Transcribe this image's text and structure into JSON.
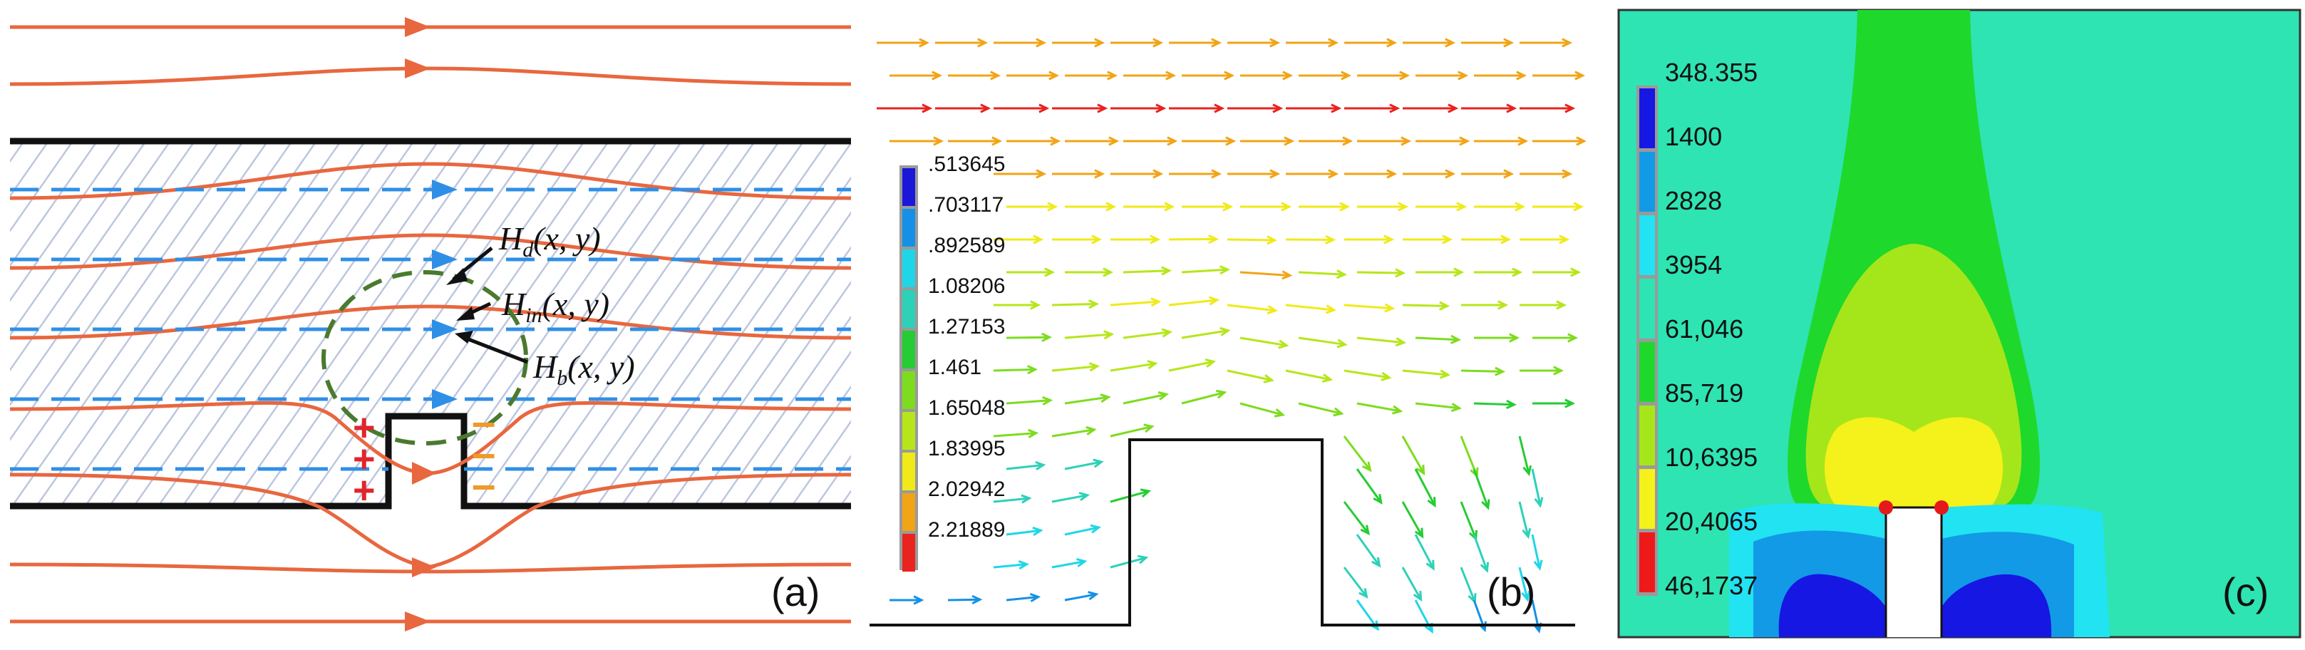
{
  "panel_a": {
    "tag": "(a)",
    "equations": [
      {
        "id": "hd",
        "main": "H",
        "sub": "d",
        "args": "(x, y)"
      },
      {
        "id": "hin",
        "main": "H",
        "sub": "in",
        "args": "(x, y)"
      },
      {
        "id": "hb",
        "main": "H",
        "sub": "b",
        "args": "(x, y)"
      }
    ],
    "plus_symbol": "+",
    "minus_symbol": "–",
    "colors": {
      "flux": "#e8673f",
      "field": "#2f8fe6",
      "plate": "#111111",
      "hatch": "#b9c4de",
      "circle": "#4a7a2e",
      "plus": "#e0252b",
      "minus": "#ef9a29"
    }
  },
  "panel_b": {
    "tag": "(b)",
    "colorbar_labels": [
      ".513645",
      ".703117",
      ".892589",
      "1.08206",
      "1.27153",
      "1.461",
      "1.65048",
      "1.83995",
      "2.02942",
      "2.21889"
    ],
    "colorbar_colors": [
      "#1a17d8",
      "#1690e6",
      "#1fd6e8",
      "#2dd1b8",
      "#25cc33",
      "#7ddc1e",
      "#b6e61a",
      "#f0ea19",
      "#f1a416",
      "#e9231e"
    ]
  },
  "panel_c": {
    "tag": "(c)",
    "colorbar_labels": [
      "348.355",
      "1400",
      "2828",
      "3954",
      "61,046",
      "85,719",
      "10,6395",
      "20,4065",
      "46,1737"
    ],
    "colorbar_colors": [
      "#1717e3",
      "#129ae6",
      "#21e3f2",
      "#2ee4b2",
      "#1fd82c",
      "#a5e61a",
      "#f5f11b",
      "#ee1a1a"
    ],
    "colors": {
      "background": "#2ee4b2",
      "plume": "#1fd82c",
      "inner": "#a5e61a",
      "core": "#f5f11b",
      "cyan": "#21e3f2",
      "lightblue": "#129ae6",
      "blue": "#1717e3",
      "defect": "#ffffff",
      "tip": "#e41a1a"
    }
  }
}
